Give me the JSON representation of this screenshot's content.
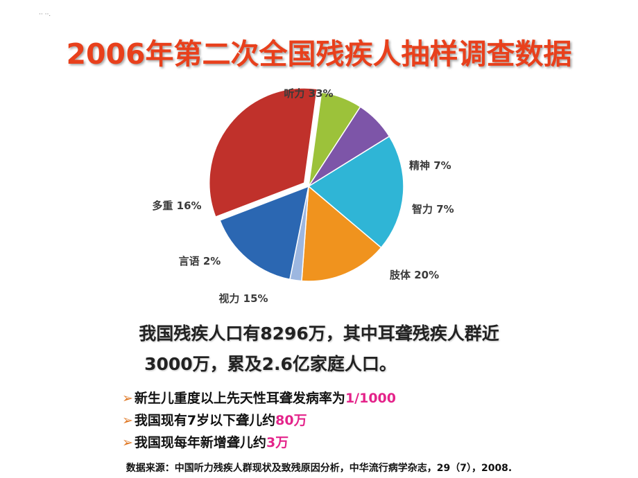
{
  "corner_mark": "·· ··.",
  "title": "2006年第二次全国残疾人抽样调查数据",
  "chart_data": {
    "type": "pie",
    "title": "",
    "slices": [
      {
        "label": "听力 33%",
        "value": 33,
        "color": "#c0312b"
      },
      {
        "label": "精神 7%",
        "value": 7,
        "color": "#9cc23a"
      },
      {
        "label": "智力 7%",
        "value": 7,
        "color": "#7d55a8"
      },
      {
        "label": "肢体 20%",
        "value": 20,
        "color": "#2fb5d6"
      },
      {
        "label": "视力 15%",
        "value": 15,
        "color": "#f0931e"
      },
      {
        "label": "言语 2%",
        "value": 2,
        "color": "#9db7e0"
      },
      {
        "label": "多重 16%",
        "value": 16,
        "color": "#2b67b2"
      }
    ],
    "legend": "none"
  },
  "summary": {
    "line1": "我国残疾人口有8296万，其中耳聋残疾人群近",
    "line2": "3000万，累及2.6亿家庭人口。"
  },
  "bullets": [
    {
      "arrow": "➢",
      "text": "新生儿重度以上先天性耳聋发病率为",
      "highlight": "1/1000"
    },
    {
      "arrow": "➢",
      "text": "我国现有7岁以下聋儿约",
      "highlight": "80万"
    },
    {
      "arrow": "➢",
      "text": "我国现每年新增聋儿约",
      "highlight": "3万"
    }
  ],
  "source": "数据来源：中国听力残疾人群现状及致残原因分析，中华流行病学杂志，29（7），2008."
}
